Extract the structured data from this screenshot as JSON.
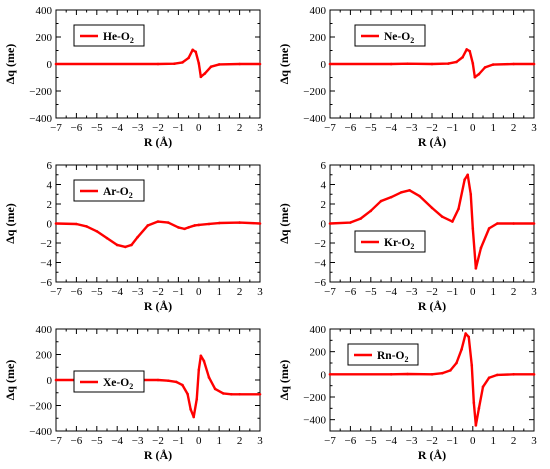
{
  "colors": {
    "series": "#ff0000",
    "axis": "#000000",
    "background": "#ffffff"
  },
  "chart_data": [
    {
      "type": "line",
      "xlabel": "R (Å)",
      "ylabel": "Δq (me)",
      "xlim": [
        -7,
        3
      ],
      "ylim": [
        -400,
        400
      ],
      "xticks": [
        -7,
        -6,
        -5,
        -4,
        -3,
        -2,
        -1,
        0,
        1,
        2,
        3
      ],
      "yticks": [
        -400,
        -200,
        0,
        200,
        400
      ],
      "legend": {
        "element": "He",
        "molecule": "O",
        "subscript": "2",
        "placement": "top-left"
      },
      "series": [
        {
          "name": "He-O2",
          "x": [
            -7,
            -2,
            -1.2,
            -0.8,
            -0.5,
            -0.3,
            -0.15,
            0,
            0.1,
            0.3,
            0.6,
            1,
            2,
            3
          ],
          "y": [
            0,
            0,
            2,
            12,
            45,
            105,
            90,
            5,
            -95,
            -70,
            -20,
            -3,
            0,
            0
          ]
        }
      ]
    },
    {
      "type": "line",
      "xlabel": "R (Å)",
      "ylabel": "Δq (me)",
      "xlim": [
        -7,
        3
      ],
      "ylim": [
        -400,
        400
      ],
      "xticks": [
        -7,
        -6,
        -5,
        -4,
        -3,
        -2,
        -1,
        0,
        1,
        2,
        3
      ],
      "yticks": [
        -400,
        -200,
        0,
        200,
        400
      ],
      "legend": {
        "element": "Ne",
        "molecule": "O",
        "subscript": "2",
        "placement": "top-right"
      },
      "series": [
        {
          "name": "Ne-O2",
          "x": [
            -7,
            -4,
            -3.2,
            -2,
            -1.2,
            -0.8,
            -0.5,
            -0.3,
            -0.15,
            0,
            0.1,
            0.3,
            0.6,
            1,
            2,
            3
          ],
          "y": [
            0,
            0,
            2,
            0,
            3,
            15,
            50,
            108,
            95,
            5,
            -98,
            -75,
            -25,
            -4,
            0,
            0
          ]
        }
      ]
    },
    {
      "type": "line",
      "xlabel": "R (Å)",
      "ylabel": "Δq (me)",
      "xlim": [
        -7,
        3
      ],
      "ylim": [
        -6,
        6
      ],
      "xticks": [
        -7,
        -6,
        -5,
        -4,
        -3,
        -2,
        -1,
        0,
        1,
        2,
        3
      ],
      "yticks": [
        -6,
        -4,
        -2,
        0,
        2,
        4,
        6
      ],
      "legend": {
        "element": "Ar",
        "molecule": "O",
        "subscript": "2",
        "placement": "top-left"
      },
      "series": [
        {
          "name": "Ar-O2",
          "x": [
            -7,
            -6,
            -5.5,
            -5,
            -4.5,
            -4,
            -3.6,
            -3.3,
            -3,
            -2.5,
            -2,
            -1.5,
            -1,
            -0.7,
            -0.5,
            -0.2,
            0,
            0.5,
            1,
            2,
            3
          ],
          "y": [
            0,
            -0.05,
            -0.3,
            -0.8,
            -1.5,
            -2.2,
            -2.4,
            -2.2,
            -1.4,
            -0.2,
            0.2,
            0.1,
            -0.4,
            -0.55,
            -0.4,
            -0.2,
            -0.15,
            -0.05,
            0.05,
            0.1,
            0
          ]
        }
      ]
    },
    {
      "type": "line",
      "xlabel": "R (Å)",
      "ylabel": "Δq (me)",
      "xlim": [
        -7,
        3
      ],
      "ylim": [
        -6,
        6
      ],
      "xticks": [
        -7,
        -6,
        -5,
        -4,
        -3,
        -2,
        -1,
        0,
        1,
        2,
        3
      ],
      "yticks": [
        -6,
        -4,
        -2,
        0,
        2,
        4,
        6
      ],
      "legend": {
        "element": "Kr",
        "molecule": "O",
        "subscript": "2",
        "placement": "center-right"
      },
      "series": [
        {
          "name": "Kr-O2",
          "x": [
            -7,
            -6,
            -5.5,
            -5,
            -4.5,
            -4,
            -3.5,
            -3.1,
            -2.6,
            -2,
            -1.5,
            -1,
            -0.7,
            -0.4,
            -0.25,
            -0.1,
            0,
            0.15,
            0.4,
            0.8,
            1.2,
            2,
            3
          ],
          "y": [
            0,
            0.1,
            0.5,
            1.3,
            2.3,
            2.7,
            3.2,
            3.4,
            2.8,
            1.6,
            0.7,
            0.2,
            1.5,
            4.5,
            5,
            3,
            -0.5,
            -4.6,
            -2.5,
            -0.5,
            0,
            0,
            0
          ]
        }
      ]
    },
    {
      "type": "line",
      "xlabel": "R (Å)",
      "ylabel": "Δq (me)",
      "xlim": [
        -7,
        3
      ],
      "ylim": [
        -400,
        400
      ],
      "xticks": [
        -7,
        -6,
        -5,
        -4,
        -3,
        -2,
        -1,
        0,
        1,
        2,
        3
      ],
      "yticks": [
        -400,
        -200,
        0,
        200,
        400
      ],
      "legend": {
        "element": "Xe",
        "molecule": "O",
        "subscript": "2",
        "placement": "center-left"
      },
      "series": [
        {
          "name": "Xe-O2",
          "x": [
            -7,
            -2,
            -1.5,
            -1.1,
            -0.8,
            -0.55,
            -0.4,
            -0.25,
            -0.1,
            0,
            0.1,
            0.25,
            0.5,
            0.8,
            1.2,
            1.6,
            2,
            3
          ],
          "y": [
            0,
            0,
            -5,
            -15,
            -40,
            -110,
            -230,
            -290,
            -150,
            80,
            190,
            150,
            20,
            -70,
            -105,
            -112,
            -112,
            -112
          ]
        }
      ]
    },
    {
      "type": "line",
      "xlabel": "R (Å)",
      "ylabel": "Δq (me)",
      "xlim": [
        -7,
        3
      ],
      "ylim": [
        -500,
        400
      ],
      "xticks": [
        -7,
        -6,
        -5,
        -4,
        -3,
        -2,
        -1,
        0,
        1,
        2,
        3
      ],
      "yticks": [
        -400,
        -200,
        0,
        200,
        400
      ],
      "legend": {
        "element": "Rn",
        "molecule": "O",
        "subscript": "2",
        "placement": "top-left"
      },
      "series": [
        {
          "name": "Rn-O2",
          "x": [
            -7,
            -4,
            -3.2,
            -2,
            -1.5,
            -1.1,
            -0.8,
            -0.55,
            -0.35,
            -0.2,
            -0.05,
            0.05,
            0.15,
            0.3,
            0.5,
            0.8,
            1.2,
            2,
            3
          ],
          "y": [
            0,
            0,
            3,
            0,
            10,
            35,
            100,
            220,
            360,
            330,
            80,
            -250,
            -450,
            -300,
            -110,
            -30,
            -5,
            0,
            0
          ]
        }
      ]
    }
  ]
}
